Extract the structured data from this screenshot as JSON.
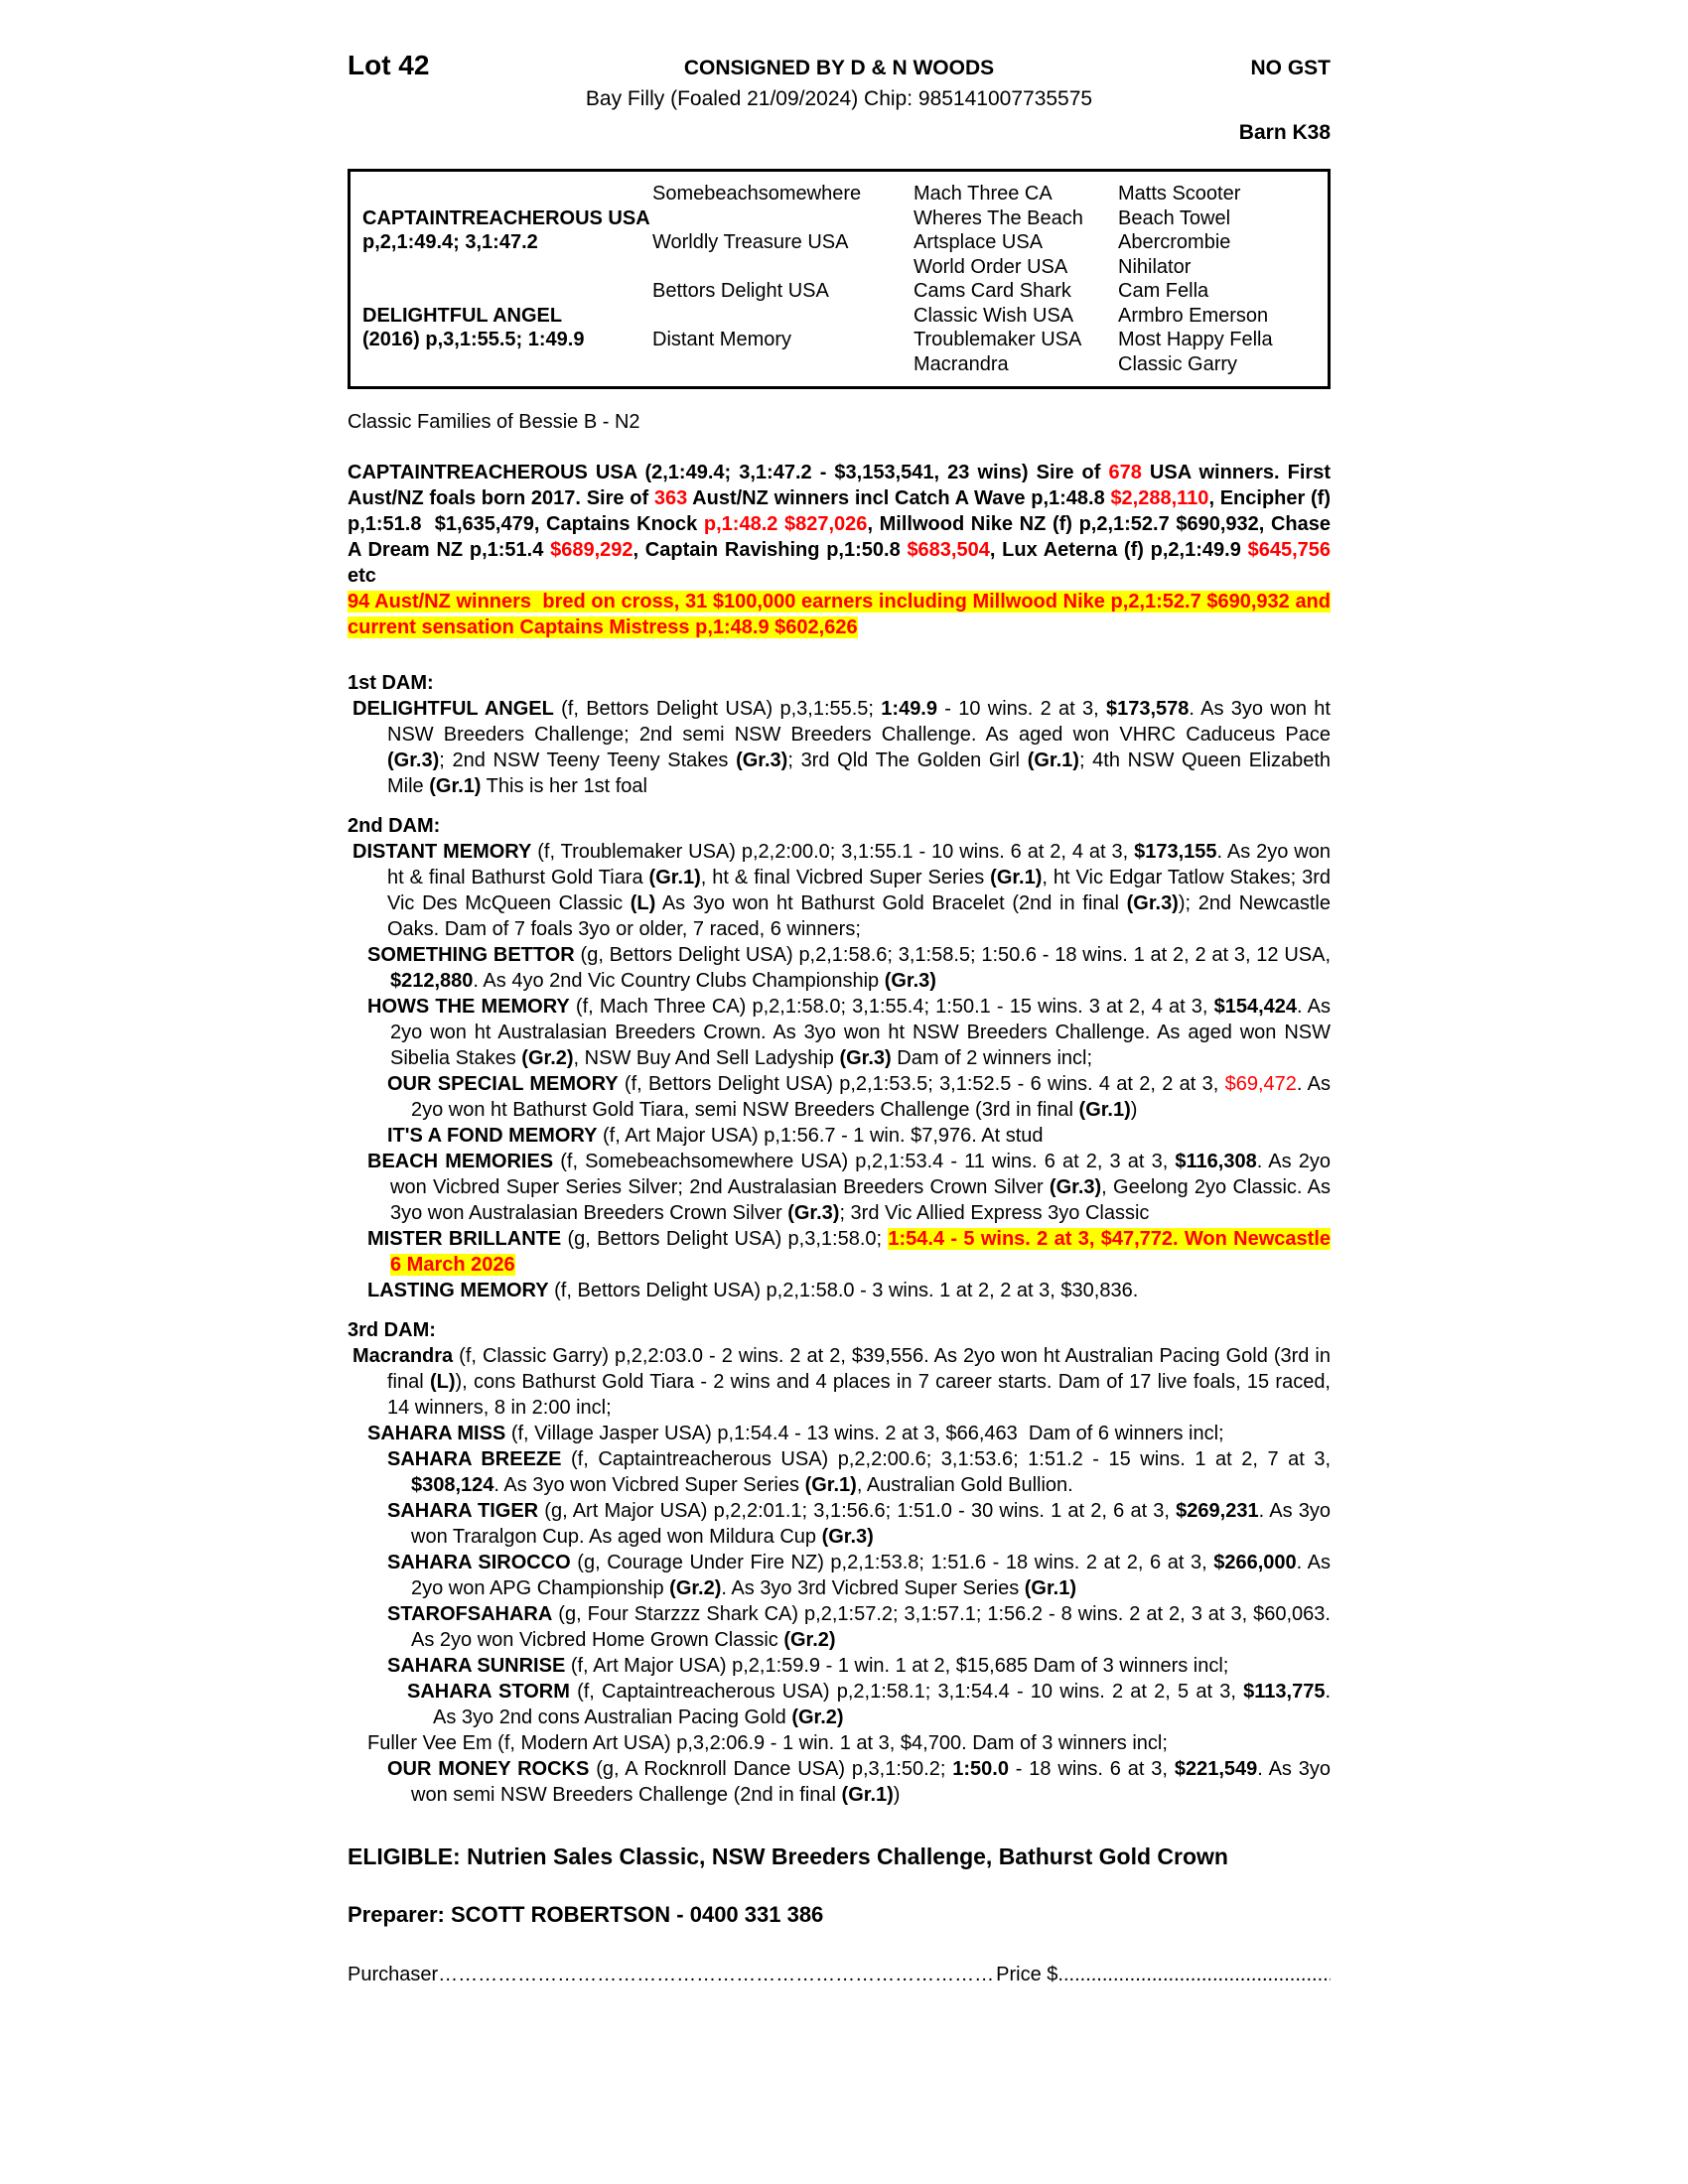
{
  "colors": {
    "red": "#ff0000",
    "highlight": "#ffff00",
    "text": "#000000",
    "page": "#ffffff"
  },
  "header": {
    "lot": "Lot 42",
    "consigned": "CONSIGNED BY D & N WOODS",
    "no_gst": "NO GST",
    "description": "Bay Filly (Foaled 21/09/2024) Chip: 985141007735575",
    "barn": "Barn K38"
  },
  "pedigree_box": {
    "sire": {
      "name": "CAPTAINTREACHEROUS USA",
      "record": "p,2,1:49.4; 3,1:47.2"
    },
    "dam": {
      "name": "DELIGHTFUL ANGEL",
      "record": "(2016) p,3,1:55.5; 1:49.9"
    },
    "gen2": [
      "Somebeachsomewhere",
      "Worldly Treasure USA",
      "Bettors Delight USA",
      "Distant Memory"
    ],
    "gen3": [
      "Mach Three CA",
      "Wheres The Beach",
      "Artsplace USA",
      "World Order USA",
      "Cams Card Shark",
      "Classic Wish USA",
      "Troublemaker USA",
      "Macrandra"
    ],
    "gen4": [
      "Matts Scooter",
      "Beach Towel",
      "Abercrombie",
      "Nihilator",
      "Cam Fella",
      "Armbro Emerson",
      "Most Happy Fella",
      "Classic Garry"
    ]
  },
  "family_note": "Classic Families of Bessie B - N2",
  "sire_summary": {
    "spans": [
      {
        "t": "CAPTAINTREACHEROUS USA (2,1:49.4; 3,1:47.2 - $3,153,541, 23 wins) Sire of ",
        "b": true
      },
      {
        "t": "678",
        "b": true,
        "r": true
      },
      {
        "t": " USA winners. First Aust/NZ foals born 2017. Sire of ",
        "b": true
      },
      {
        "t": "363",
        "b": true,
        "r": true
      },
      {
        "t": " Aust/NZ winners incl Catch A Wave p,1:48.8 ",
        "b": true
      },
      {
        "t": "$2,288,110",
        "b": true,
        "r": true
      },
      {
        "t": ", Encipher (f) p,1:51.8  $1,635,479, Captains Knock ",
        "b": true
      },
      {
        "t": "p,1:48.2 $827,026",
        "b": true,
        "r": true
      },
      {
        "t": ", Millwood Nike NZ (f) p,2,1:52.7 $690,932, Chase A Dream NZ p,1:51.4 ",
        "b": true
      },
      {
        "t": "$689,292",
        "b": true,
        "r": true
      },
      {
        "t": ", Captain Ravishing p,1:50.8 ",
        "b": true
      },
      {
        "t": "$683,504",
        "b": true,
        "r": true
      },
      {
        "t": ", Lux Aeterna (f) p,2,1:49.9 ",
        "b": true
      },
      {
        "t": "$645,756",
        "b": true,
        "r": true
      },
      {
        "t": " etc",
        "b": true
      }
    ]
  },
  "sire_highlight": {
    "spans": [
      {
        "t": "94 Aust/NZ winners  bred on cross, 31 $100,000 earners including Millwood Nike p,2,1:52.7 $690,932 and current sensation Captains Mistress p,1:48.9 $602,626",
        "b": true,
        "r": true,
        "h": true
      }
    ]
  },
  "dam_sections": [
    {
      "heading": "1st DAM:",
      "entries": [
        {
          "level": "dam",
          "spans": [
            {
              "t": "DELIGHTFUL ANGEL",
              "b": true
            },
            {
              "t": " (f, Bettors Delight USA) p,3,1:55.5; "
            },
            {
              "t": "1:49.9",
              "b": true
            },
            {
              "t": " - 10 wins. 2 at 3, "
            },
            {
              "t": "$173,578",
              "b": true
            },
            {
              "t": ". As 3yo won ht NSW Breeders Challenge; 2nd semi NSW Breeders Challenge. As aged won VHRC Caduceus Pace "
            },
            {
              "t": "(Gr.3)",
              "b": true
            },
            {
              "t": "; 2nd NSW Teeny Teeny Stakes "
            },
            {
              "t": "(Gr.3)",
              "b": true
            },
            {
              "t": "; 3rd Qld The Golden Girl "
            },
            {
              "t": "(Gr.1)",
              "b": true
            },
            {
              "t": "; 4th NSW Queen Elizabeth Mile "
            },
            {
              "t": "(Gr.1)",
              "b": true
            },
            {
              "t": " This is her 1st foal"
            }
          ]
        }
      ]
    },
    {
      "heading": "2nd DAM:",
      "entries": [
        {
          "level": "dam",
          "spans": [
            {
              "t": "DISTANT MEMORY",
              "b": true
            },
            {
              "t": " (f, Troublemaker USA) p,2,2:00.0; 3,1:55.1 - 10 wins. 6 at 2, 4 at 3, "
            },
            {
              "t": "$173,155",
              "b": true
            },
            {
              "t": ". As 2yo won ht & final Bathurst Gold Tiara "
            },
            {
              "t": "(Gr.1)",
              "b": true
            },
            {
              "t": ", ht & final Vicbred Super Series "
            },
            {
              "t": "(Gr.1)",
              "b": true
            },
            {
              "t": ", ht Vic Edgar Tatlow Stakes; 3rd Vic Des McQueen Classic "
            },
            {
              "t": "(L)",
              "b": true
            },
            {
              "t": " As 3yo won ht Bathurst Gold Bracelet (2nd in final "
            },
            {
              "t": "(Gr.3)",
              "b": true
            },
            {
              "t": "); 2nd Newcastle Oaks. Dam of 7 foals 3yo or older, 7 raced, 6 winners;"
            }
          ]
        },
        {
          "level": "l1",
          "spans": [
            {
              "t": "SOMETHING BETTOR",
              "b": true
            },
            {
              "t": " (g, Bettors Delight USA) p,2,1:58.6; 3,1:58.5; 1:50.6 - 18 wins. 1 at 2, 2 at 3, 12 USA, "
            },
            {
              "t": "$212,880",
              "b": true
            },
            {
              "t": ". As 4yo 2nd Vic Country Clubs Championship "
            },
            {
              "t": "(Gr.3)",
              "b": true
            }
          ]
        },
        {
          "level": "l1",
          "spans": [
            {
              "t": "HOWS THE MEMORY",
              "b": true
            },
            {
              "t": " (f, Mach Three CA) p,2,1:58.0; 3,1:55.4; 1:50.1 - 15 wins. 3 at 2, 4 at 3, "
            },
            {
              "t": "$154,424",
              "b": true
            },
            {
              "t": ". As 2yo won ht Australasian Breeders Crown. As 3yo won ht NSW Breeders Challenge. As aged won NSW Sibelia Stakes "
            },
            {
              "t": "(Gr.2)",
              "b": true
            },
            {
              "t": ", NSW Buy And Sell Ladyship "
            },
            {
              "t": "(Gr.3)",
              "b": true
            },
            {
              "t": " Dam of 2 winners incl;"
            }
          ]
        },
        {
          "level": "l2",
          "spans": [
            {
              "t": "OUR SPECIAL MEMORY",
              "b": true
            },
            {
              "t": " (f, Bettors Delight USA) p,2,1:53.5; 3,1:52.5 - 6 wins. 4 at 2, 2 at 3, "
            },
            {
              "t": "$69,472",
              "r": true
            },
            {
              "t": ". As 2yo won ht Bathurst Gold Tiara, semi NSW Breeders Challenge (3rd in final "
            },
            {
              "t": "(Gr.1)",
              "b": true
            },
            {
              "t": ")"
            }
          ]
        },
        {
          "level": "l2",
          "spans": [
            {
              "t": "IT'S A FOND MEMORY",
              "b": true
            },
            {
              "t": " (f, Art Major USA) p,1:56.7 - 1 win. $7,976. At stud"
            }
          ]
        },
        {
          "level": "l1",
          "spans": [
            {
              "t": "BEACH MEMORIES",
              "b": true
            },
            {
              "t": " (f, Somebeachsomewhere USA) p,2,1:53.4 - 11 wins. 6 at 2, 3 at 3, "
            },
            {
              "t": "$116,308",
              "b": true
            },
            {
              "t": ". As 2yo won Vicbred Super Series Silver; 2nd Australasian Breeders Crown Silver "
            },
            {
              "t": "(Gr.3)",
              "b": true
            },
            {
              "t": ", Geelong 2yo Classic. As 3yo won Australasian Breeders Crown Silver "
            },
            {
              "t": "(Gr.3)",
              "b": true
            },
            {
              "t": "; 3rd Vic Allied Express 3yo Classic"
            }
          ]
        },
        {
          "level": "l1",
          "spans": [
            {
              "t": "MISTER BRILLANTE",
              "b": true
            },
            {
              "t": " (g, Bettors Delight USA) p,3,1:58.0; "
            },
            {
              "t": "1:54.4 - 5 wins. 2 at 3, $47,772. Won Newcastle 6 March 2026",
              "b": true,
              "r": true,
              "h": true
            }
          ]
        },
        {
          "level": "l1",
          "spans": [
            {
              "t": "LASTING MEMORY",
              "b": true
            },
            {
              "t": " (f, Bettors Delight USA) p,2,1:58.0 - 3 wins. 1 at 2, 2 at 3, $30,836."
            }
          ]
        }
      ]
    },
    {
      "heading": "3rd DAM:",
      "entries": [
        {
          "level": "dam",
          "spans": [
            {
              "t": "Macrandra",
              "b": true
            },
            {
              "t": " (f, Classic Garry) p,2,2:03.0 - 2 wins. 2 at 2, $39,556. As 2yo won ht Australian Pacing Gold (3rd in final "
            },
            {
              "t": "(L)",
              "b": true
            },
            {
              "t": "), cons Bathurst Gold Tiara - 2 wins and 4 places in 7 career starts. Dam of 17 live foals, 15 raced, 14 winners, 8 in 2:00 incl;"
            }
          ]
        },
        {
          "level": "l1",
          "spans": [
            {
              "t": "SAHARA MISS",
              "b": true
            },
            {
              "t": " (f, Village Jasper USA) p,1:54.4 - 13 wins. 2 at 3, $66,463  Dam of 6 winners incl;"
            }
          ]
        },
        {
          "level": "l2",
          "spans": [
            {
              "t": "SAHARA BREEZE",
              "b": true
            },
            {
              "t": " (f, Captaintreacherous USA) p,2,2:00.6; 3,1:53.6; 1:51.2 - 15 wins. 1 at 2, 7 at 3, "
            },
            {
              "t": "$308,124",
              "b": true
            },
            {
              "t": ". As 3yo won Vicbred Super Series "
            },
            {
              "t": "(Gr.1)",
              "b": true
            },
            {
              "t": ", Australian Gold Bullion."
            }
          ]
        },
        {
          "level": "l2",
          "spans": [
            {
              "t": "SAHARA TIGER",
              "b": true
            },
            {
              "t": " (g, Art Major USA) p,2,2:01.1; 3,1:56.6; 1:51.0 - 30 wins. 1 at 2, 6 at 3, "
            },
            {
              "t": "$269,231",
              "b": true
            },
            {
              "t": ". As 3yo won Traralgon Cup. As aged won Mildura Cup "
            },
            {
              "t": "(Gr.3)",
              "b": true
            }
          ]
        },
        {
          "level": "l2",
          "spans": [
            {
              "t": "SAHARA SIROCCO",
              "b": true
            },
            {
              "t": " (g, Courage Under Fire NZ) p,2,1:53.8; 1:51.6 - 18 wins. 2 at 2, 6 at 3, "
            },
            {
              "t": "$266,000",
              "b": true
            },
            {
              "t": ". As 2yo won APG Championship "
            },
            {
              "t": "(Gr.2)",
              "b": true
            },
            {
              "t": ". As 3yo 3rd Vicbred Super Series "
            },
            {
              "t": "(Gr.1)",
              "b": true
            }
          ]
        },
        {
          "level": "l2",
          "spans": [
            {
              "t": "STAROFSAHARA",
              "b": true
            },
            {
              "t": " (g, Four Starzzz Shark CA) p,2,1:57.2; 3,1:57.1; 1:56.2 - 8 wins. 2 at 2, 3 at 3, $60,063. As 2yo won Vicbred Home Grown Classic "
            },
            {
              "t": "(Gr.2)",
              "b": true
            }
          ]
        },
        {
          "level": "l2",
          "spans": [
            {
              "t": "SAHARA SUNRISE",
              "b": true
            },
            {
              "t": " (f, Art Major USA) p,2,1:59.9 - 1 win. 1 at 2, $15,685 Dam of 3 winners incl;"
            }
          ]
        },
        {
          "level": "l3",
          "spans": [
            {
              "t": "SAHARA STORM",
              "b": true
            },
            {
              "t": " (f, Captaintreacherous USA) p,2,1:58.1; 3,1:54.4 - 10 wins. 2 at 2, 5 at 3, "
            },
            {
              "t": "$113,775",
              "b": true
            },
            {
              "t": ". As 3yo 2nd cons Australian Pacing Gold "
            },
            {
              "t": "(Gr.2)",
              "b": true
            }
          ]
        },
        {
          "level": "l1",
          "spans": [
            {
              "t": "Fuller Vee Em (f, Modern Art USA) p,3,2:06.9 - 1 win. 1 at 3, $4,700. Dam of 3 winners incl;"
            }
          ]
        },
        {
          "level": "l2",
          "spans": [
            {
              "t": "OUR MONEY ROCKS",
              "b": true
            },
            {
              "t": " (g, A Rocknroll Dance USA) p,3,1:50.2; "
            },
            {
              "t": "1:50.0",
              "b": true
            },
            {
              "t": " - 18 wins. 6 at 3, "
            },
            {
              "t": "$221,549",
              "b": true
            },
            {
              "t": ". As 3yo won semi NSW Breeders Challenge (2nd in final "
            },
            {
              "t": "(Gr.1)",
              "b": true
            },
            {
              "t": ")"
            }
          ]
        }
      ]
    }
  ],
  "eligible": "ELIGIBLE: Nutrien Sales Classic, NSW Breeders Challenge, Bathurst Gold Crown",
  "preparer": "Preparer: SCOTT ROBERTSON - 0400 331 386",
  "purchaser_line": {
    "label": "Purchaser",
    "leader": "…………………………………………………………………………",
    "price_label": "Price $",
    "price_leader": "....................................................."
  }
}
